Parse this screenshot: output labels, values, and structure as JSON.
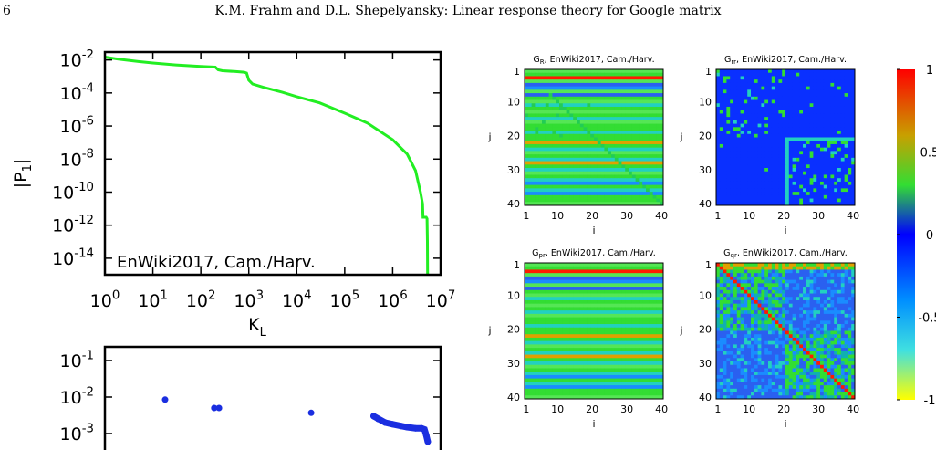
{
  "header": {
    "page_number": "6",
    "title": "K.M. Frahm and D.L. Shepelyansky: Linear response theory for Google matrix"
  },
  "colors": {
    "curve": "#22ee22",
    "points": "#1a2ee0",
    "frame": "#000000"
  },
  "chart_data": [
    {
      "type": "line",
      "xscale": "log",
      "yscale": "log",
      "xlim": [
        1,
        10000000
      ],
      "ylim": [
        1e-15,
        0.03
      ],
      "xlabel": "K",
      "xlabel_sub": "L",
      "ylabel": "|P",
      "ylabel_sub": "1",
      "ylabel_end": "|",
      "annotation": "EnWiki2017, Cam./Harv.",
      "x_ticks": [
        {
          "base": "10",
          "exp": "0",
          "v": 1
        },
        {
          "base": "10",
          "exp": "1",
          "v": 10
        },
        {
          "base": "10",
          "exp": "2",
          "v": 100
        },
        {
          "base": "10",
          "exp": "3",
          "v": 1000
        },
        {
          "base": "10",
          "exp": "4",
          "v": 10000
        },
        {
          "base": "10",
          "exp": "5",
          "v": 100000
        },
        {
          "base": "10",
          "exp": "6",
          "v": 1000000
        },
        {
          "base": "10",
          "exp": "7",
          "v": 10000000
        }
      ],
      "y_ticks": [
        {
          "base": "10",
          "exp": "-2",
          "v": 0.01
        },
        {
          "base": "10",
          "exp": "-4",
          "v": 0.0001
        },
        {
          "base": "10",
          "exp": "-6",
          "v": 1e-06
        },
        {
          "base": "10",
          "exp": "-8",
          "v": 1e-08
        },
        {
          "base": "10",
          "exp": "-10",
          "v": 1e-10
        },
        {
          "base": "10",
          "exp": "-12",
          "v": 1e-12
        },
        {
          "base": "10",
          "exp": "-14",
          "v": 1e-14
        }
      ],
      "series": [
        {
          "x": [
            1,
            2,
            5,
            10,
            30,
            100,
            200,
            230,
            280,
            500,
            800,
            900,
            1000,
            1200,
            2000,
            5000,
            10000,
            30000,
            100000,
            300000,
            1000000,
            2000000,
            3000000,
            3800000,
            4200000,
            4300000,
            5000000,
            5200000,
            5300000,
            5350000
          ],
          "y": [
            0.015,
            0.011,
            0.008,
            0.0065,
            0.005,
            0.004,
            0.0037,
            0.0025,
            0.0022,
            0.002,
            0.0018,
            0.0016,
            0.0006,
            0.00035,
            0.00022,
            0.00011,
            6e-05,
            2.5e-05,
            6e-06,
            1.5e-06,
            1.5e-07,
            2e-08,
            2e-09,
            1e-10,
            2e-11,
            3e-12,
            3e-12,
            2.5e-12,
            1e-13,
            1e-15
          ]
        }
      ]
    },
    {
      "type": "scatter",
      "xscale": "log",
      "yscale": "log",
      "xlim": [
        1,
        10000000
      ],
      "ylim": [
        0.0005,
        0.2
      ],
      "y_ticks": [
        {
          "base": "10",
          "exp": "-1",
          "v": 0.1
        },
        {
          "base": "10",
          "exp": "-2",
          "v": 0.01
        },
        {
          "base": "10",
          "exp": "-3",
          "v": 0.001
        }
      ],
      "series": [
        {
          "x": [
            18,
            190,
            240,
            20000,
            400000,
            500000,
            700000,
            1000000,
            1500000,
            2000000,
            3000000,
            4000000,
            4500000,
            5000000,
            5400000
          ],
          "y": [
            0.0085,
            0.005,
            0.005,
            0.0037,
            0.003,
            0.0025,
            0.002,
            0.0018,
            0.0016,
            0.0015,
            0.0014,
            0.0014,
            0.0013,
            0.0009,
            0.0006
          ]
        }
      ]
    },
    {
      "type": "heatmap",
      "grid": 40,
      "colorbar": {
        "ticks": [
          {
            "label": "1",
            "v": 1
          },
          {
            "label": "0.5",
            "v": 0.5
          },
          {
            "label": "0",
            "v": 0
          },
          {
            "label": "-0.5",
            "v": -0.5
          },
          {
            "label": "-1",
            "v": -1
          }
        ]
      },
      "y_ticks": [
        "1",
        "10",
        "20",
        "30",
        "40"
      ],
      "x_ticks": [
        "1",
        "10",
        "20",
        "30",
        "40"
      ],
      "xlabel": "i",
      "ylabel": "j",
      "panels": [
        {
          "key": "R",
          "title_main": "G",
          "title_sub": "R",
          "title_rest": ", EnWiki2017, Cam./Harv."
        },
        {
          "key": "rr",
          "title_main": "G",
          "title_sub": "rr",
          "title_rest": ", EnWiki2017, Cam./Harv."
        },
        {
          "key": "pr",
          "title_main": "G",
          "title_sub": "pr",
          "title_rest": ", EnWiki2017, Cam./Harv."
        },
        {
          "key": "qr",
          "title_main": "G",
          "title_sub": "qr",
          "title_rest": ", EnWiki2017, Cam./Harv."
        }
      ]
    }
  ]
}
